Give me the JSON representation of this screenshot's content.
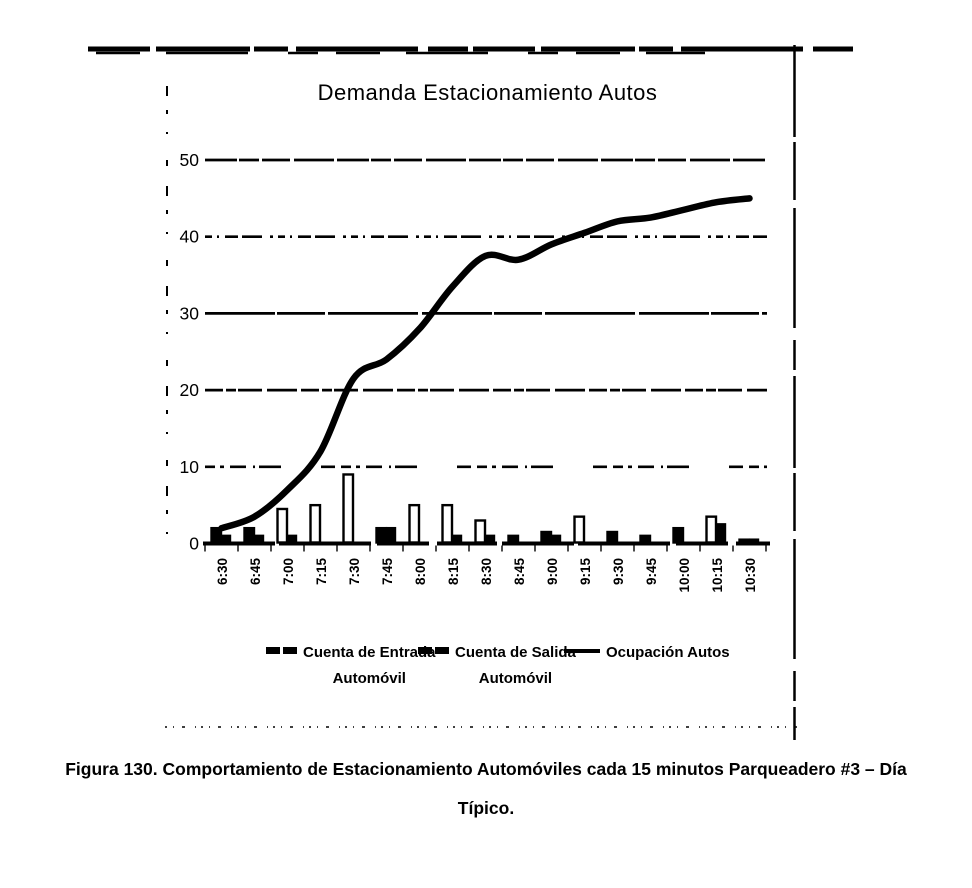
{
  "figure": {
    "caption_line1": "Figura 130. Comportamiento de Estacionamiento Automóviles cada 15 minutos Parqueadero #3 – Día",
    "caption_line2": "Típico."
  },
  "chart_data": {
    "type": "bar",
    "subtype": "combo-bar-line-scanned-document",
    "title": "Demanda Estacionamiento Autos",
    "categories": [
      "6:30",
      "6:45",
      "7:00",
      "7:15",
      "7:30",
      "7:45",
      "8:00",
      "8:15",
      "8:30",
      "8:45",
      "9:00",
      "9:15",
      "9:30",
      "9:45",
      "10:00",
      "10:15",
      "10:30"
    ],
    "series": [
      {
        "name": "Cuenta de Entrada Automóvil",
        "type": "bar",
        "values": [
          2,
          2,
          4.5,
          5,
          9,
          2,
          5,
          5,
          3,
          1,
          1.5,
          3.5,
          1.5,
          1,
          2,
          3.5,
          0.5
        ]
      },
      {
        "name": "Cuenta de Salida Automóvil",
        "type": "bar",
        "values": [
          1,
          1,
          1,
          0,
          0,
          2,
          0,
          1,
          1,
          0,
          1,
          0,
          0,
          0,
          0,
          2.5,
          0.5
        ]
      },
      {
        "name": "Ocupación Autos",
        "type": "line",
        "values": [
          2,
          3.5,
          7,
          12,
          21.5,
          24,
          28,
          33.5,
          37.5,
          37,
          39,
          40.5,
          42,
          42.5,
          43.5,
          44.5,
          45
        ]
      }
    ],
    "xlabel": "",
    "ylabel": "",
    "ylim": [
      0,
      50
    ],
    "yticks": [
      0,
      10,
      20,
      30,
      40,
      50
    ],
    "grid": "horizontal dashed (rough scan)",
    "x_label_rotation": -90,
    "legend_position": "bottom",
    "colors": {
      "ink": "#000000",
      "background": "#ffffff"
    }
  },
  "legend": {
    "items": [
      {
        "line1": "Cuenta de Entrada",
        "line2": "Automóvil",
        "marker": "thick-dash"
      },
      {
        "line1": "Cuenta de Salida",
        "line2": "Automóvil",
        "marker": "thick-dash"
      },
      {
        "line1": "Ocupación Autos",
        "line2": "",
        "marker": "thin-line"
      }
    ]
  }
}
